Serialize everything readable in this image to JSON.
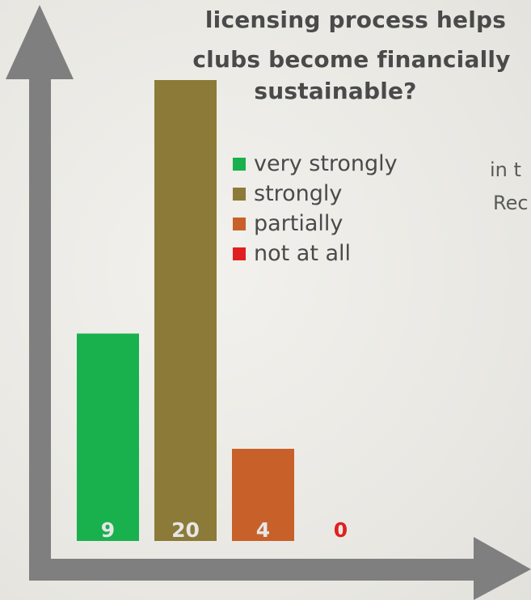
{
  "chart_data": {
    "type": "bar",
    "title_lines": [
      "licensing process helps",
      "clubs become financially",
      "sustainable?"
    ],
    "categories": [
      "very strongly",
      "strongly",
      "partially",
      "not at all"
    ],
    "values": [
      9,
      20,
      4,
      0
    ],
    "value_labels": [
      "9",
      "20",
      "4",
      "0"
    ],
    "ylim": [
      0,
      20
    ],
    "grid": false,
    "legend": {
      "placement": "top-right",
      "entries": [
        "very strongly",
        "strongly",
        "partially",
        "not at all"
      ]
    },
    "colors": [
      "#19b04e",
      "#8c7a38",
      "#c8602a",
      "#e02020"
    ],
    "label_colors": [
      "#e6e6e6",
      "#e6e6e6",
      "#e6e6e6",
      "#e02020"
    ]
  },
  "side_text": [
    "in t",
    "Rec"
  ],
  "axis_color": "#7f7f7f"
}
